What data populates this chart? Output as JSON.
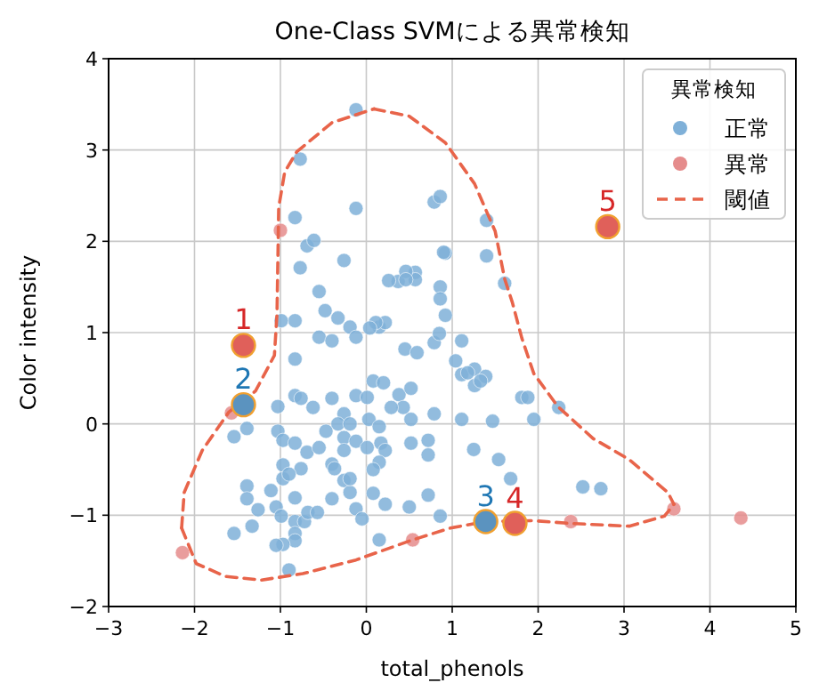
{
  "chart_data": {
    "type": "scatter",
    "title": "One-Class SVMによる異常検知",
    "xlabel": "total_phenols",
    "ylabel": "Color intensity",
    "legend_title": "異常検知",
    "legend": "top right",
    "grid": true,
    "marker": "circle",
    "xlim": [
      -3,
      5
    ],
    "ylim": [
      -2,
      4
    ],
    "xticks": [
      -3,
      -2,
      -1,
      0,
      1,
      2,
      3,
      4,
      5
    ],
    "yticks": [
      -2,
      -1,
      0,
      1,
      2,
      3,
      4
    ],
    "series": [
      {
        "name": "正常",
        "type": "scatter",
        "color": "#7fb0d8",
        "x": [
          -0.12,
          -0.77,
          -0.83,
          -0.12,
          -0.69,
          -0.61,
          -0.77,
          -0.26,
          -0.55,
          -0.48,
          -0.33,
          -0.19,
          0.15,
          0.22,
          0.37,
          0.57,
          0.57,
          0.86,
          0.86,
          0.92,
          0.92,
          0.79,
          0.86,
          -0.83,
          -0.99,
          1.4,
          1.4,
          0.9,
          1.61,
          0.46,
          0.46,
          0.26,
          0.11,
          0.04,
          -0.55,
          -0.4,
          -0.12,
          0.45,
          0.59,
          0.79,
          0.85,
          -0.83,
          -0.83,
          -0.76,
          -0.62,
          -0.4,
          -0.12,
          0.08,
          0.2,
          0.01,
          0.38,
          0.52,
          0.43,
          0.29,
          0.79,
          0.52,
          -1.03,
          -0.26,
          -0.33,
          -0.19,
          0.03,
          0.15,
          -0.47,
          -1.03,
          -1.39,
          -1.54,
          -0.97,
          -0.83,
          -0.69,
          -0.55,
          -0.26,
          -0.26,
          -0.12,
          0.01,
          0.17,
          0.22,
          0.52,
          0.72,
          0.72,
          0.15,
          0.08,
          -0.4,
          -0.37,
          -0.76,
          -0.97,
          -0.97,
          -0.9,
          -1.11,
          -1.39,
          -1.39,
          -1.26,
          -1.05,
          -0.99,
          -0.83,
          -0.83,
          -0.83,
          -0.83,
          -0.97,
          -1.05,
          -0.72,
          -0.68,
          -0.57,
          -0.4,
          -0.26,
          -0.19,
          -0.12,
          -0.19,
          0.08,
          0.22,
          0.5,
          0.72,
          0.86,
          -0.05,
          0.15,
          -1.33,
          -1.54,
          -0.9,
          1.11,
          1.04,
          1.11,
          1.26,
          1.39,
          1.26,
          1.33,
          1.18,
          1.81,
          1.88,
          2.24,
          1.95,
          1.47,
          1.11,
          1.25,
          1.54,
          1.68,
          2.52,
          2.73
        ],
        "values": [
          3.44,
          2.9,
          2.26,
          2.36,
          1.95,
          2.01,
          1.71,
          1.79,
          1.45,
          1.24,
          1.16,
          1.06,
          1.06,
          1.11,
          1.56,
          1.66,
          1.58,
          1.5,
          1.37,
          1.19,
          1.87,
          2.43,
          2.49,
          1.13,
          1.13,
          2.23,
          1.84,
          1.88,
          1.54,
          1.67,
          1.58,
          1.57,
          1.11,
          1.05,
          0.95,
          0.91,
          0.95,
          0.82,
          0.78,
          0.89,
          0.99,
          0.71,
          0.31,
          0.28,
          0.18,
          0.28,
          0.31,
          0.47,
          0.45,
          0.29,
          0.32,
          0.39,
          0.18,
          0.18,
          0.11,
          0.05,
          0.19,
          0.11,
          0.0,
          0.0,
          0.05,
          -0.03,
          -0.08,
          -0.08,
          -0.05,
          -0.14,
          -0.18,
          -0.21,
          -0.31,
          -0.26,
          -0.15,
          -0.29,
          -0.19,
          -0.26,
          -0.21,
          -0.29,
          -0.21,
          -0.18,
          -0.34,
          -0.42,
          -0.5,
          -0.44,
          -0.49,
          -0.49,
          -0.45,
          -0.6,
          -0.55,
          -0.73,
          -0.68,
          -0.82,
          -0.94,
          -0.91,
          -1.01,
          -0.81,
          -1.07,
          -1.2,
          -1.28,
          -1.32,
          -1.33,
          -1.07,
          -0.97,
          -0.97,
          -0.82,
          -0.62,
          -0.75,
          -0.93,
          -0.6,
          -0.76,
          -0.88,
          -0.91,
          -0.78,
          -1.01,
          -1.04,
          -1.27,
          -1.12,
          -1.2,
          -1.6,
          0.91,
          0.69,
          0.54,
          0.6,
          0.52,
          0.42,
          0.47,
          0.56,
          0.29,
          0.29,
          0.18,
          0.05,
          0.03,
          0.05,
          -0.28,
          -0.39,
          -0.6,
          -0.69,
          -0.71
        ]
      },
      {
        "name": "異常",
        "type": "scatter",
        "color": "#e58c8c",
        "x": [
          -2.14,
          -1.57,
          -1.0,
          0.54,
          2.38,
          3.58,
          4.36
        ],
        "values": [
          -1.41,
          0.12,
          2.12,
          -1.27,
          -1.07,
          -0.93,
          -1.03
        ]
      },
      {
        "name": "閾値",
        "type": "line",
        "color": "#e8644a",
        "line_style": "dashed",
        "marker": "none",
        "x": [
          -2.15,
          -2.12,
          -1.91,
          -1.6,
          -1.29,
          -1.07,
          -1.04,
          -1.03,
          -1.02,
          -0.95,
          -0.81,
          -0.4,
          0.09
        ],
        "values": [
          -1.14,
          -0.75,
          -0.29,
          0.13,
          0.36,
          0.75,
          1.2,
          1.78,
          2.37,
          2.76,
          2.98,
          3.3,
          3.45
        ]
      },
      {
        "type": "line",
        "color": "#e8644a",
        "line_style": "dashed",
        "marker": "none",
        "x": [
          -2.15,
          -1.98,
          -1.64,
          -1.22,
          -0.74,
          -0.12,
          0.54,
          0.98,
          1.39,
          1.95,
          2.38,
          3.06,
          3.47,
          3.58
        ],
        "values": [
          -1.14,
          -1.53,
          -1.67,
          -1.71,
          -1.64,
          -1.49,
          -1.27,
          -1.14,
          -1.07,
          -1.06,
          -1.09,
          -1.12,
          -1.01,
          -0.88
        ]
      },
      {
        "type": "line",
        "color": "#e8644a",
        "line_style": "dashed",
        "marker": "none",
        "x": [
          0.09,
          0.5,
          0.92,
          1.26,
          1.5,
          1.61,
          1.7,
          1.81,
          1.95,
          2.23,
          2.64,
          3.06,
          3.51,
          3.58
        ],
        "values": [
          3.45,
          3.37,
          3.08,
          2.63,
          2.11,
          1.59,
          1.33,
          0.94,
          0.55,
          0.19,
          -0.16,
          -0.39,
          -0.75,
          -0.88
        ]
      },
      {
        "type": "scatter",
        "colors": [
          "#e0605a",
          "#5b93bf",
          "#5b93bf",
          "#e0605a",
          "#e0605a"
        ],
        "x": [
          -1.43,
          -1.43,
          1.39,
          1.73,
          2.81
        ],
        "values": [
          0.86,
          0.21,
          -1.07,
          -1.09,
          2.16
        ]
      }
    ],
    "annotations": [
      {
        "text": "1",
        "x": -1.43,
        "y": 0.86
      },
      {
        "text": "2",
        "x": -1.43,
        "y": 0.21
      },
      {
        "text": "3",
        "x": 1.39,
        "y": -1.07
      },
      {
        "text": "4",
        "x": 1.73,
        "y": -1.09
      },
      {
        "text": "5",
        "x": 2.81,
        "y": 2.16
      }
    ]
  }
}
